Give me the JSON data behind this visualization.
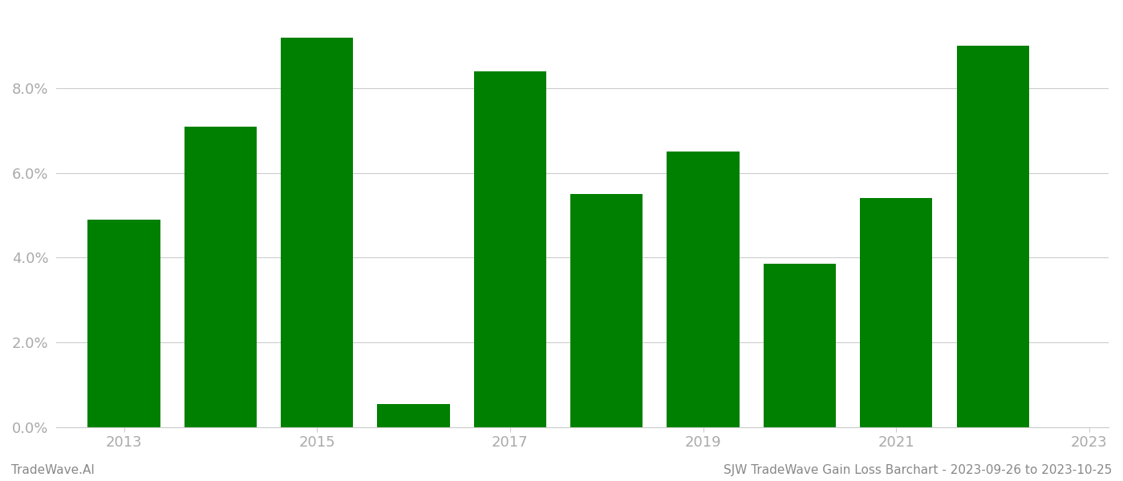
{
  "years": [
    2013,
    2014,
    2015,
    2016,
    2017,
    2018,
    2019,
    2020,
    2021,
    2022
  ],
  "values": [
    0.049,
    0.071,
    0.092,
    0.0055,
    0.084,
    0.055,
    0.065,
    0.0385,
    0.054,
    0.09
  ],
  "bar_color": "#008000",
  "background_color": "#ffffff",
  "footer_left": "TradeWave.AI",
  "footer_right": "SJW TradeWave Gain Loss Barchart - 2023-09-26 to 2023-10-25",
  "ylim_min": 0.0,
  "ylim_max": 0.098,
  "grid_color": "#cccccc",
  "tick_label_color": "#aaaaaa",
  "footer_color": "#888888",
  "bar_width": 0.75,
  "xtick_labels": [
    "2013",
    "2015",
    "2017",
    "2019",
    "2021",
    "2023"
  ],
  "xtick_positions": [
    2013,
    2015,
    2017,
    2019,
    2021,
    2023
  ],
  "yticks": [
    0.0,
    0.02,
    0.04,
    0.06,
    0.08
  ],
  "xlim_min": 2012.3,
  "xlim_max": 2023.2
}
